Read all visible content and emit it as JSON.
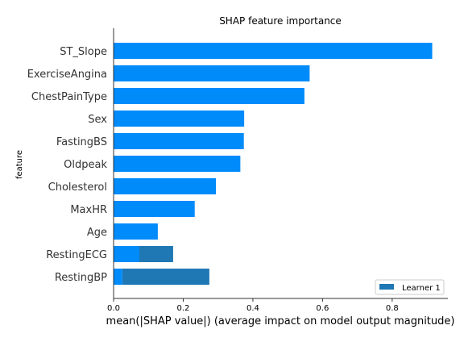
{
  "chart_data": {
    "type": "bar",
    "orientation": "horizontal",
    "title": "SHAP feature importance",
    "xlabel": "mean(|SHAP value|) (average impact on model output magnitude)",
    "ylabel": "feature",
    "xlim": [
      0,
      0.96
    ],
    "xticks": [
      "0.0",
      "0.2",
      "0.4",
      "0.6",
      "0.8"
    ],
    "xtick_values": [
      0.0,
      0.2,
      0.4,
      0.6,
      0.8
    ],
    "categories": [
      "ST_Slope",
      "ExerciseAngina",
      "ChestPainType",
      "Sex",
      "FastingBS",
      "Oldpeak",
      "Cholesterol",
      "MaxHR",
      "Age",
      "RestingECG",
      "RestingBP"
    ],
    "series": [
      {
        "name": "",
        "color": "#008bfb",
        "values": [
          0.915,
          0.563,
          0.548,
          0.375,
          0.374,
          0.364,
          0.294,
          0.233,
          0.127,
          0.074,
          0.025
        ]
      },
      {
        "name": "Learner 1",
        "color": "#1f77b4",
        "values": [
          0.0,
          0.0,
          0.0,
          0.0,
          0.0,
          0.0,
          0.0,
          0.0,
          0.0,
          0.097,
          0.25
        ]
      }
    ],
    "legend": {
      "placement": "lower-right",
      "entries": [
        "Learner 1"
      ]
    },
    "grid": false
  }
}
